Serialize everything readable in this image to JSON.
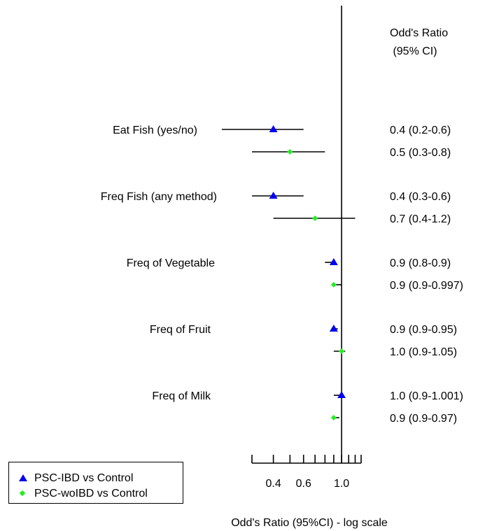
{
  "chart_data": {
    "type": "forest",
    "xlabel": "Odd's Ratio (95%CI) - log scale",
    "x_scale": "log",
    "xlim": [
      0.3,
      1.3
    ],
    "x_ticks": [
      0.3,
      0.4,
      0.5,
      0.6,
      0.7,
      0.8,
      0.9,
      1.0,
      1.1,
      1.2,
      1.3
    ],
    "x_tick_labels": [
      {
        "value": 0.4,
        "label": "0.4"
      },
      {
        "value": 0.6,
        "label": "0.6"
      },
      {
        "value": 1.0,
        "label": "1.0"
      }
    ],
    "reference_line": 1.0,
    "right_header": [
      "Odd's Ratio",
      " (95% CI)"
    ],
    "series": [
      {
        "name": "PSC-IBD vs Control",
        "marker": "triangle",
        "color": "#0000ee"
      },
      {
        "name": "PSC-woIBD vs Control",
        "marker": "diamond",
        "color": "#22ee22"
      }
    ],
    "groups": [
      {
        "label": "Eat Fish (yes/no)",
        "rows": [
          {
            "series": 0,
            "or": 0.4,
            "lo": 0.2,
            "hi": 0.6,
            "text": "0.4 (0.2-0.6)"
          },
          {
            "series": 1,
            "or": 0.5,
            "lo": 0.3,
            "hi": 0.8,
            "text": "0.5 (0.3-0.8)"
          }
        ]
      },
      {
        "label": "Freq Fish (any method)",
        "rows": [
          {
            "series": 0,
            "or": 0.4,
            "lo": 0.3,
            "hi": 0.6,
            "text": "0.4 (0.3-0.6)"
          },
          {
            "series": 1,
            "or": 0.7,
            "lo": 0.4,
            "hi": 1.2,
            "text": "0.7 (0.4-1.2)"
          }
        ]
      },
      {
        "label": "Freq of Vegetable",
        "rows": [
          {
            "series": 0,
            "or": 0.9,
            "lo": 0.8,
            "hi": 0.9,
            "text": "0.9 (0.8-0.9)"
          },
          {
            "series": 1,
            "or": 0.9,
            "lo": 0.9,
            "hi": 0.997,
            "text": "0.9 (0.9-0.997)"
          }
        ]
      },
      {
        "label": "Freq of Fruit",
        "rows": [
          {
            "series": 0,
            "or": 0.9,
            "lo": 0.9,
            "hi": 0.95,
            "text": "0.9 (0.9-0.95)"
          },
          {
            "series": 1,
            "or": 1.0,
            "lo": 0.9,
            "hi": 1.05,
            "text": "1.0 (0.9-1.05)"
          }
        ]
      },
      {
        "label": "Freq of Milk",
        "rows": [
          {
            "series": 0,
            "or": 1.0,
            "lo": 0.9,
            "hi": 1.001,
            "text": "1.0 (0.9-1.001)"
          },
          {
            "series": 1,
            "or": 0.9,
            "lo": 0.9,
            "hi": 0.97,
            "text": "0.9 (0.9-0.97)"
          }
        ]
      }
    ],
    "legend": {
      "position": "bottom-left"
    }
  }
}
